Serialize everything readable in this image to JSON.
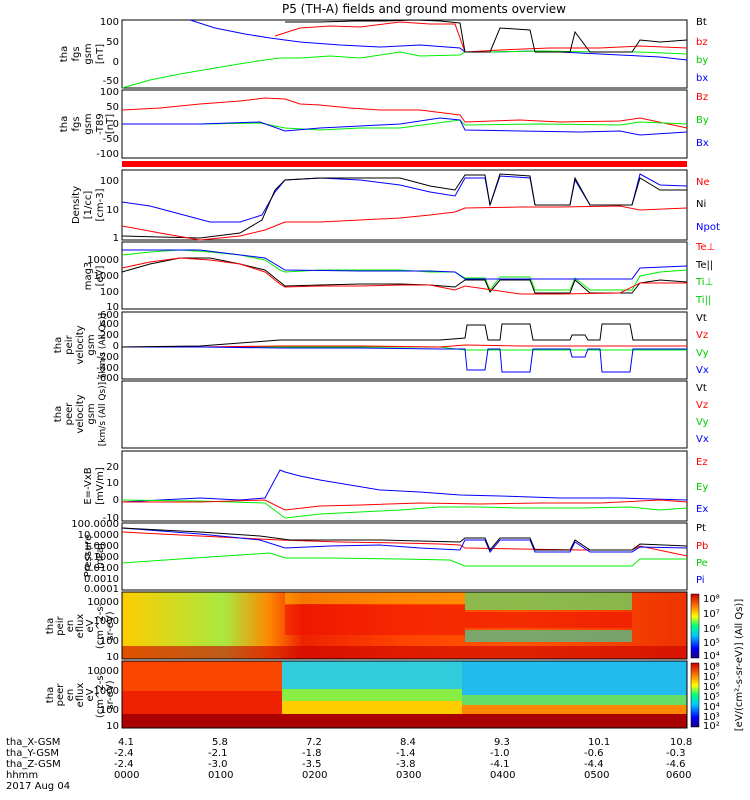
{
  "title": "P5 (TH-A) fields and ground moments overview",
  "colors": {
    "black": "#000000",
    "red": "#ff0000",
    "green": "#00ee00",
    "blue": "#0000ff"
  },
  "date_label": "2017 Aug 04",
  "xaxis": {
    "rows": [
      {
        "label": "tha_X-GSM",
        "values": [
          "4.1",
          "5.8",
          "7.2",
          "8.4",
          "9.3",
          "10.1",
          "10.8"
        ]
      },
      {
        "label": "tha_Y-GSM",
        "values": [
          "-2.4",
          "-2.1",
          "-1.8",
          "-1.4",
          "-1.0",
          "-0.6",
          "-0.3"
        ]
      },
      {
        "label": "tha_Z-GSM",
        "values": [
          "-2.4",
          "-3.0",
          "-3.5",
          "-3.8",
          "-4.1",
          "-4.4",
          "-4.6"
        ]
      },
      {
        "label": "hhmm",
        "values": [
          "0000",
          "0100",
          "0200",
          "0300",
          "0400",
          "0500",
          "0600"
        ]
      }
    ]
  },
  "colorbar": {
    "ion_ticks": [
      "10⁴",
      "10⁵",
      "10⁶",
      "10⁷",
      "10⁸"
    ],
    "elec_ticks": [
      "10²",
      "10³",
      "10⁴",
      "10⁵",
      "10⁶",
      "10⁷",
      "10⁸"
    ],
    "label": "[eV/(cm²-s-sr-eV)] (All Qs)]"
  },
  "chart_data": [
    {
      "type": "line",
      "panel": "fgs_gsm_rel",
      "ylabel": [
        "tha",
        "fgs",
        "gsm",
        "[nT]"
      ],
      "yticks": [
        "100",
        "50",
        "0",
        "-50"
      ],
      "ylim": [
        -70,
        100
      ],
      "series": [
        {
          "name": "Bt",
          "color": "#000000"
        },
        {
          "name": "bz",
          "color": "#ff0000"
        },
        {
          "name": "by",
          "color": "#00ee00"
        },
        {
          "name": "bx",
          "color": "#0000ff"
        }
      ]
    },
    {
      "type": "line",
      "panel": "fgs_gsm",
      "ylabel": [
        "tha",
        "fgs",
        "gsm",
        "-T89",
        "[nT]"
      ],
      "yticks": [
        "100",
        "50",
        "0",
        "-50",
        "-100"
      ],
      "ylim": [
        -130,
        100
      ],
      "series": [
        {
          "name": "Bz",
          "color": "#ff0000"
        },
        {
          "name": "By",
          "color": "#00ee00"
        },
        {
          "name": "Bx",
          "color": "#0000ff"
        }
      ]
    },
    {
      "type": "line",
      "panel": "density",
      "ylabel": [
        "Density",
        "[1/cc]",
        "[cm-3]"
      ],
      "yticks": [
        "100",
        "10",
        "1"
      ],
      "ylim": [
        1,
        300
      ],
      "series": [
        {
          "name": "Ne",
          "color": "#ff0000"
        },
        {
          "name": "Ni",
          "color": "#000000"
        },
        {
          "name": "Npot",
          "color": "#0000ff"
        }
      ]
    },
    {
      "type": "line",
      "panel": "temperature",
      "ylabel": [
        "mag3",
        "[eV]"
      ],
      "yticks": [
        "10000",
        "1000",
        "100",
        "10"
      ],
      "ylim": [
        5,
        20000
      ],
      "series": [
        {
          "name": "Te⊥",
          "color": "#ff0000"
        },
        {
          "name": "Te||",
          "color": "#000000"
        },
        {
          "name": "Ti⊥",
          "color": "#00ee00"
        },
        {
          "name": "Ti||",
          "color": "#00ee00"
        }
      ]
    },
    {
      "type": "line",
      "panel": "peir_velocity",
      "ylabel": [
        "tha",
        "peir",
        "velocity",
        "gsm",
        "[km/s (All Qs)]"
      ],
      "yticks": [
        "600",
        "400",
        "200",
        "0",
        "-200",
        "-400",
        "-600"
      ],
      "ylim": [
        -600,
        600
      ],
      "series": [
        {
          "name": "Vt",
          "color": "#000000"
        },
        {
          "name": "Vz",
          "color": "#ff0000"
        },
        {
          "name": "Vy",
          "color": "#00ee00"
        },
        {
          "name": "Vx",
          "color": "#0000ff"
        }
      ]
    },
    {
      "type": "line",
      "panel": "peer_velocity",
      "ylabel": [
        "tha",
        "peer",
        "velocity",
        "gsm",
        "[km/s (All Qs)]"
      ],
      "yticks": [],
      "ylim": [
        -600,
        600
      ],
      "series": [
        {
          "name": "Vt",
          "color": "#000000"
        },
        {
          "name": "Vz",
          "color": "#ff0000"
        },
        {
          "name": "Vy",
          "color": "#00ee00"
        },
        {
          "name": "Vx",
          "color": "#0000ff"
        }
      ]
    },
    {
      "type": "line",
      "panel": "efield",
      "ylabel": [
        "E=-VxB",
        "[mV/m]"
      ],
      "yticks": [
        "20",
        "10",
        "0",
        "-10"
      ],
      "ylim": [
        -10,
        25
      ],
      "series": [
        {
          "name": "Ez",
          "color": "#ff0000"
        },
        {
          "name": "Ey",
          "color": "#00ee00"
        },
        {
          "name": "Ex",
          "color": "#0000ff"
        }
      ]
    },
    {
      "type": "line",
      "panel": "pressure",
      "ylabel": [
        "Pressure",
        "[nPa]"
      ],
      "yticks": [
        "100.0000",
        "10.0000",
        "1.0000",
        "0.1000",
        "0.0100",
        "0.0010",
        "0.0001"
      ],
      "ylim": [
        0.0001,
        100
      ],
      "series": [
        {
          "name": "Pt",
          "color": "#000000"
        },
        {
          "name": "Pb",
          "color": "#ff0000"
        },
        {
          "name": "Pe",
          "color": "#00ee00"
        },
        {
          "name": "Pi",
          "color": "#0000ff"
        }
      ]
    },
    {
      "type": "heatmap",
      "panel": "ion_spectrogram",
      "ylabel": [
        "tha",
        "peir",
        "en",
        "eflux",
        "eV",
        "(cm^2-s-",
        "sr-eV)"
      ],
      "yticks": [
        "10000",
        "1000",
        "100",
        "10"
      ],
      "ylim": [
        5,
        25000
      ]
    },
    {
      "type": "heatmap",
      "panel": "electron_spectrogram",
      "ylabel": [
        "tha",
        "peer",
        "en",
        "eflux",
        "eV",
        "(cm^2-s-",
        "sr-eV)"
      ],
      "yticks": [
        "10000",
        "1000",
        "100",
        "10"
      ],
      "ylim": [
        5,
        25000
      ]
    }
  ]
}
